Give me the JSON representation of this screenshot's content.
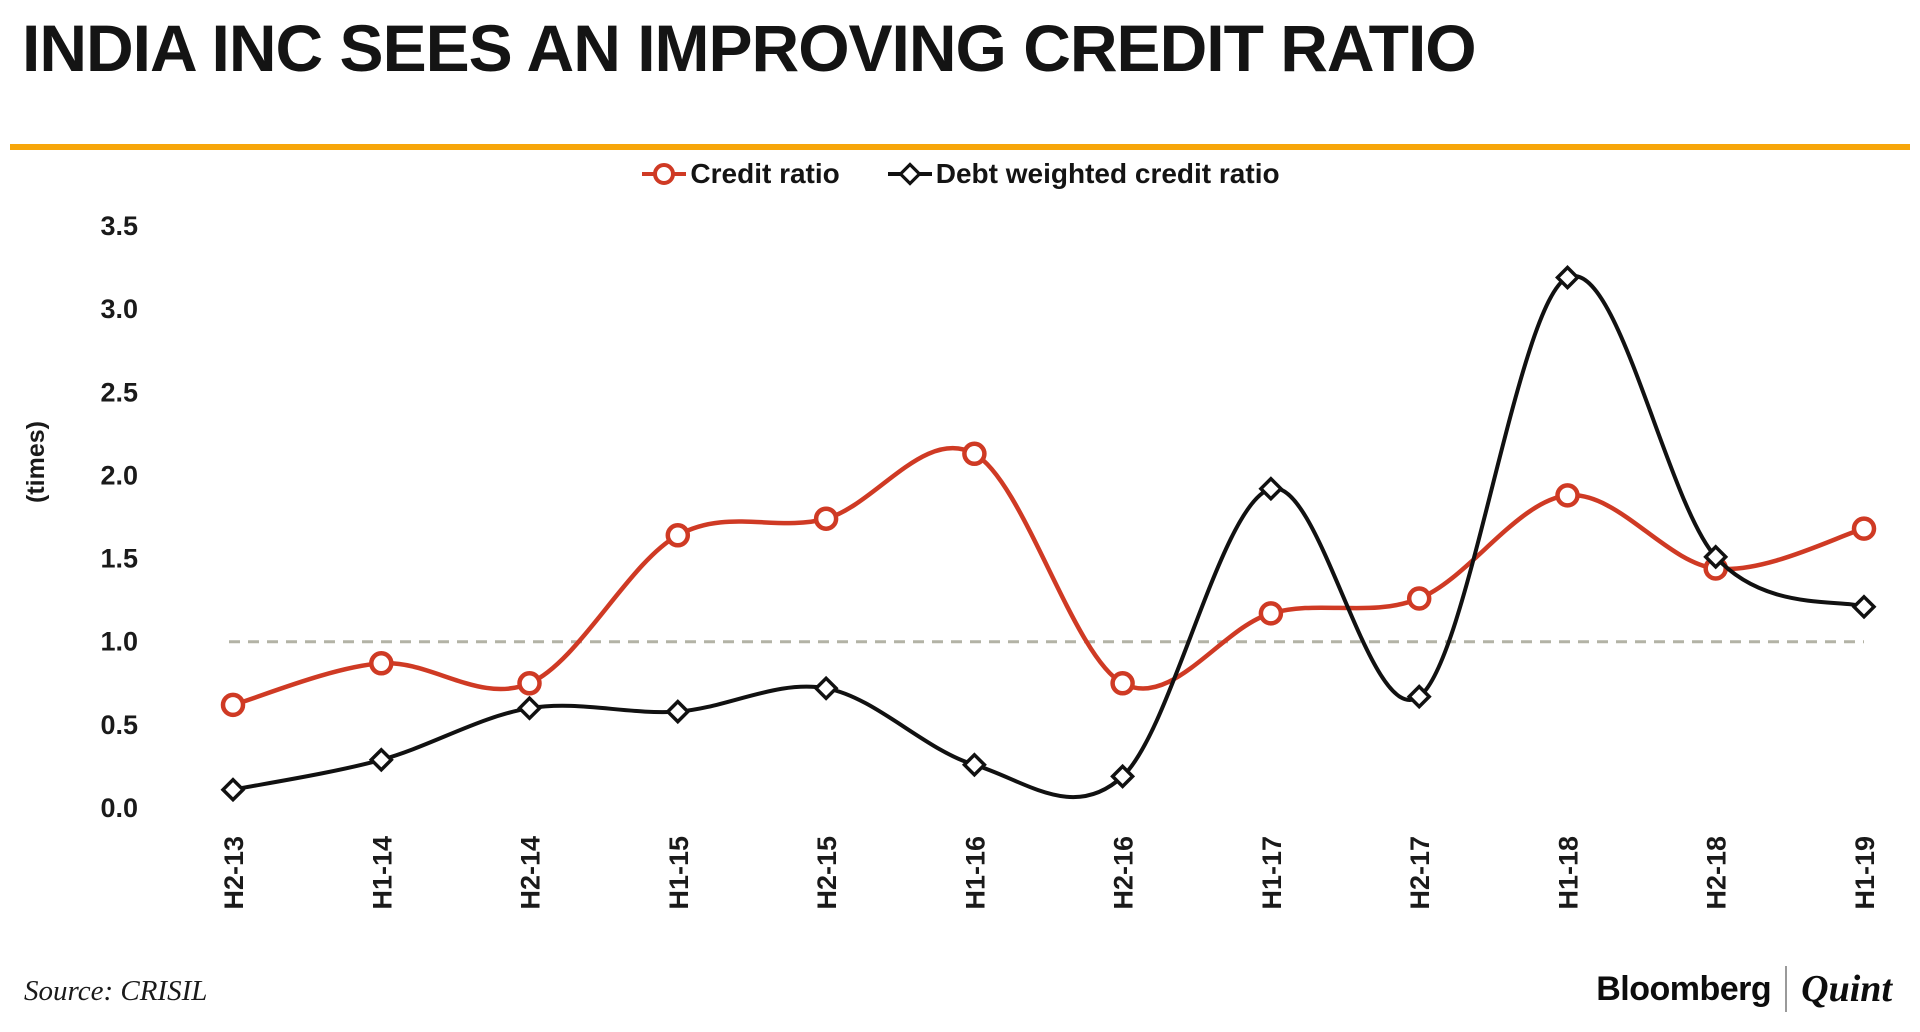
{
  "header": {
    "title": "INDIA INC SEES AN IMPROVING CREDIT RATIO",
    "accent_rule_color": "#f7a60a"
  },
  "chart_data": {
    "type": "line",
    "categories": [
      "H2-13",
      "H1-14",
      "H2-14",
      "H1-15",
      "H2-15",
      "H1-16",
      "H2-16",
      "H1-17",
      "H2-17",
      "H1-18",
      "H2-18",
      "H1-19"
    ],
    "series": [
      {
        "name": "Credit ratio",
        "marker": "circle",
        "color": "#cf3a24",
        "values": [
          0.62,
          0.87,
          0.75,
          1.64,
          1.74,
          2.13,
          0.75,
          1.17,
          1.26,
          1.88,
          1.44,
          1.68
        ]
      },
      {
        "name": "Debt weighted credit ratio",
        "marker": "diamond",
        "color": "#111111",
        "values": [
          0.11,
          0.29,
          0.6,
          0.58,
          0.72,
          0.26,
          0.19,
          1.92,
          0.67,
          3.19,
          1.51,
          1.21
        ]
      }
    ],
    "title": "INDIA INC SEES AN IMPROVING CREDIT RATIO",
    "xlabel": "",
    "ylabel": "(times)",
    "ylim": [
      0,
      3.5
    ],
    "yticks": [
      3.5,
      3.0,
      2.5,
      2.0,
      1.5,
      1.0,
      0.5,
      0.0
    ],
    "reference_line": {
      "value": 1.0,
      "style": "dashed",
      "color": "#b3b3a6"
    },
    "grid": false,
    "legend_position": "top-center"
  },
  "footer": {
    "source": "Source: CRISIL",
    "brand_primary": "Bloomberg",
    "brand_secondary": "Quint"
  }
}
